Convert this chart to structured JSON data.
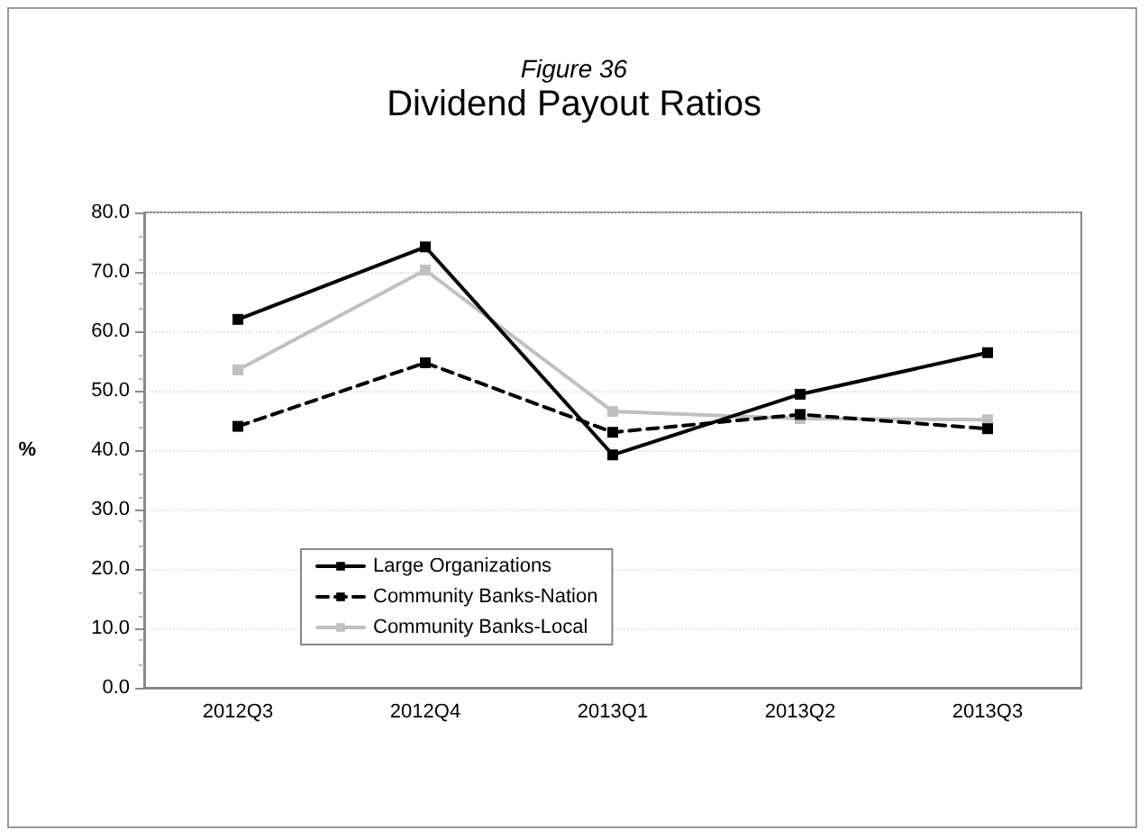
{
  "chart_data": {
    "type": "line",
    "title": "Dividend Payout Ratios",
    "subtitle": "Figure 36",
    "ylabel": "%",
    "categories": [
      "2012Q3",
      "2012Q4",
      "2013Q1",
      "2013Q2",
      "2013Q3"
    ],
    "series": [
      {
        "name": "Large Organizations",
        "color": "#000000",
        "line_style": "solid",
        "values": [
          62.0,
          74.2,
          39.2,
          49.4,
          56.4
        ]
      },
      {
        "name": "Community Banks-Nation",
        "color": "#000000",
        "line_style": "dashed",
        "values": [
          44.0,
          54.7,
          43.0,
          46.0,
          43.6
        ]
      },
      {
        "name": "Community Banks-Local",
        "color": "#c0c0c0",
        "line_style": "solid",
        "values": [
          53.5,
          70.3,
          46.5,
          45.3,
          45.1
        ]
      }
    ],
    "ylim": [
      0,
      80
    ],
    "yticks": [
      {
        "value": 0,
        "label": "0.0"
      },
      {
        "value": 10,
        "label": "10.0"
      },
      {
        "value": 20,
        "label": "20.0"
      },
      {
        "value": 30,
        "label": "30.0"
      },
      {
        "value": 40,
        "label": "40.0"
      },
      {
        "value": 50,
        "label": "50.0"
      },
      {
        "value": 60,
        "label": "60.0"
      },
      {
        "value": 70,
        "label": "70.0"
      },
      {
        "value": 80,
        "label": "80.0"
      }
    ],
    "grid": "y",
    "legend": "bottom left",
    "marker": "square"
  }
}
